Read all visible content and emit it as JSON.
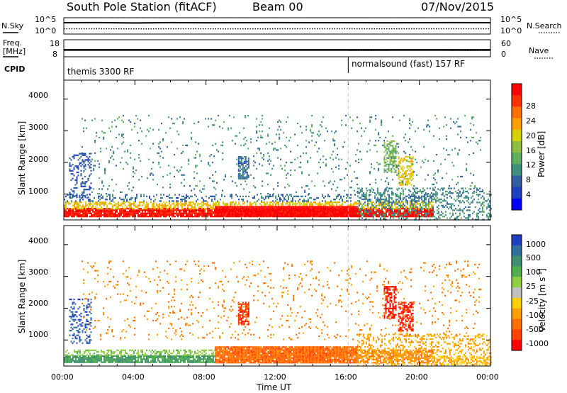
{
  "header": {
    "station": "South Pole Station (fitACF)",
    "beam": "Beam 00",
    "date": "07/Nov/2015"
  },
  "colors": {
    "axis": "#000000",
    "dashed_marker": "#c8c8c8",
    "background": "#ffffff"
  },
  "chart_data": [
    {
      "type": "line",
      "panel": "noise",
      "left_label": "N.Sky",
      "right_label": "N.Search",
      "left_ticks": [
        "10^5",
        "10^0"
      ],
      "right_ticks": [
        "10^5",
        "10^0"
      ],
      "y_scale": "log",
      "ylim": [
        1,
        100000
      ],
      "x": [
        0,
        2,
        4,
        6,
        8,
        10,
        12,
        14,
        16,
        18,
        20,
        22,
        24
      ],
      "series": [
        {
          "name": "N.Sky",
          "style": "solid",
          "values": [
            3000,
            3200,
            2500,
            3100,
            2900,
            3000,
            3100,
            3000,
            3050,
            2900,
            3000,
            3100,
            3000
          ]
        },
        {
          "name": "N.Search",
          "style": "dotted",
          "values": [
            40,
            42,
            38,
            41,
            40,
            39,
            41,
            40,
            42,
            40,
            41,
            40,
            41
          ]
        }
      ]
    },
    {
      "type": "line",
      "panel": "frequency",
      "left_label": "Freq. [MHz]",
      "right_label": "Nave",
      "left_ticks": [
        "18",
        "8"
      ],
      "right_ticks": [
        "60",
        "0"
      ],
      "ylim_left": [
        8,
        18
      ],
      "ylim_right": [
        0,
        60
      ],
      "x": [
        0,
        4,
        8,
        12,
        16,
        20,
        24
      ],
      "series": [
        {
          "name": "Freq. [MHz]",
          "style": "solid",
          "values": [
            12,
            12,
            12,
            12,
            12,
            12,
            12
          ]
        },
        {
          "name": "Nave",
          "style": "dotted",
          "x": [
            16,
            18,
            20,
            22,
            24
          ],
          "values": [
            22,
            22,
            24,
            22,
            22
          ]
        }
      ]
    },
    {
      "type": "table",
      "panel": "cpid",
      "label": "CPID",
      "segments": [
        {
          "start": 0,
          "end": 16,
          "text": "themis 3300 RF"
        },
        {
          "start": 16,
          "end": 24,
          "text": "normalsound (fast) 157 RF"
        }
      ]
    },
    {
      "type": "heatmap",
      "panel": "power",
      "ylabel": "Slant Range [km]",
      "xlim": [
        0,
        24
      ],
      "ylim": [
        180,
        4600
      ],
      "yticks": [
        "1000",
        "2000",
        "3000",
        "4000"
      ],
      "colorbar_label": "Power [dB]",
      "colorbar_ticks": [
        "4",
        "8",
        "12",
        "16",
        "20",
        "24",
        "28"
      ],
      "colorbar_range": [
        0,
        32
      ],
      "colorbar_colors": [
        "#0000ff",
        "#1f3fbf",
        "#2f5fa0",
        "#3f8f7f",
        "#5faf5f",
        "#8fbf3f",
        "#d8d000",
        "#ffa000",
        "#ff7000",
        "#ff3000",
        "#ff0000"
      ],
      "regions": [
        {
          "t0": 0.0,
          "t1": 20.8,
          "r0": 300,
          "r1": 560,
          "value": 30,
          "density": 0.9
        },
        {
          "t0": 0.0,
          "t1": 20.8,
          "r0": 560,
          "r1": 760,
          "value": 20,
          "density": 0.55
        },
        {
          "t0": 0.0,
          "t1": 20.8,
          "r0": 760,
          "r1": 1000,
          "value": 8,
          "density": 0.25
        },
        {
          "t0": 8.5,
          "t1": 16.5,
          "r0": 320,
          "r1": 620,
          "value": 31,
          "density": 1.0
        },
        {
          "t0": 0.3,
          "t1": 1.5,
          "r0": 900,
          "r1": 2300,
          "value": 6,
          "density": 0.3
        },
        {
          "t0": 9.8,
          "t1": 10.4,
          "r0": 1500,
          "r1": 2200,
          "value": 8,
          "density": 0.7
        },
        {
          "t0": 18.0,
          "t1": 18.7,
          "r0": 1700,
          "r1": 2700,
          "value": 14,
          "density": 0.6
        },
        {
          "t0": 18.8,
          "t1": 19.6,
          "r0": 1300,
          "r1": 2200,
          "value": 20,
          "density": 0.6
        },
        {
          "t0": 16.5,
          "t1": 24.0,
          "r0": 200,
          "r1": 1200,
          "value": 10,
          "density": 0.3
        },
        {
          "t0": 1.0,
          "t1": 23.5,
          "r0": 1000,
          "r1": 3500,
          "value": 10,
          "density": 0.05
        }
      ]
    },
    {
      "type": "heatmap",
      "panel": "velocity",
      "ylabel": "Slant Range [km]",
      "xlabel": "Time UT",
      "xlim": [
        0,
        24
      ],
      "ylim": [
        180,
        4600
      ],
      "xticks": [
        "00:00",
        "04:00",
        "08:00",
        "12:00",
        "16:00",
        "20:00",
        "00:00"
      ],
      "yticks": [
        "1000",
        "2000",
        "3000",
        "4000"
      ],
      "colorbar_label": "Velocity [m s",
      "colorbar_label_superscript": "-1",
      "colorbar_label_close": "]",
      "colorbar_ticks": [
        "1000",
        "500",
        "100",
        "25",
        "-25",
        "-100",
        "-500",
        "-1000"
      ],
      "colorbar_colors": [
        "#1f3fbf",
        "#2f6f9f",
        "#3f8f6f",
        "#4faf4f",
        "#8fcf3f",
        "#c0c0c0",
        "#ffd000",
        "#ffa000",
        "#ff7000",
        "#ff4000",
        "#ff0000"
      ],
      "regions": [
        {
          "t0": 0.0,
          "t1": 8.5,
          "r0": 300,
          "r1": 520,
          "value": 120,
          "density": 0.85
        },
        {
          "t0": 0.0,
          "t1": 8.5,
          "r0": 520,
          "r1": 700,
          "value": 40,
          "density": 0.5
        },
        {
          "t0": 8.5,
          "t1": 16.5,
          "r0": 300,
          "r1": 800,
          "value": -300,
          "density": 0.95
        },
        {
          "t0": 16.5,
          "t1": 20.8,
          "r0": 300,
          "r1": 700,
          "value": -150,
          "density": 0.7
        },
        {
          "t0": 20.8,
          "t1": 24.0,
          "r0": 250,
          "r1": 500,
          "value": -50,
          "density": 0.4
        },
        {
          "t0": 0.3,
          "t1": 1.5,
          "r0": 900,
          "r1": 2300,
          "value": 700,
          "density": 0.3
        },
        {
          "t0": 9.8,
          "t1": 10.4,
          "r0": 1500,
          "r1": 2200,
          "value": -600,
          "density": 0.7
        },
        {
          "t0": 18.0,
          "t1": 18.7,
          "r0": 1700,
          "r1": 2700,
          "value": -800,
          "density": 0.6
        },
        {
          "t0": 18.8,
          "t1": 19.6,
          "r0": 1300,
          "r1": 2200,
          "value": -700,
          "density": 0.6
        },
        {
          "t0": 16.5,
          "t1": 24.0,
          "r0": 200,
          "r1": 1200,
          "value": -80,
          "density": 0.3
        },
        {
          "t0": 1.0,
          "t1": 23.5,
          "r0": 1000,
          "r1": 3500,
          "value": -150,
          "density": 0.05
        }
      ]
    }
  ]
}
